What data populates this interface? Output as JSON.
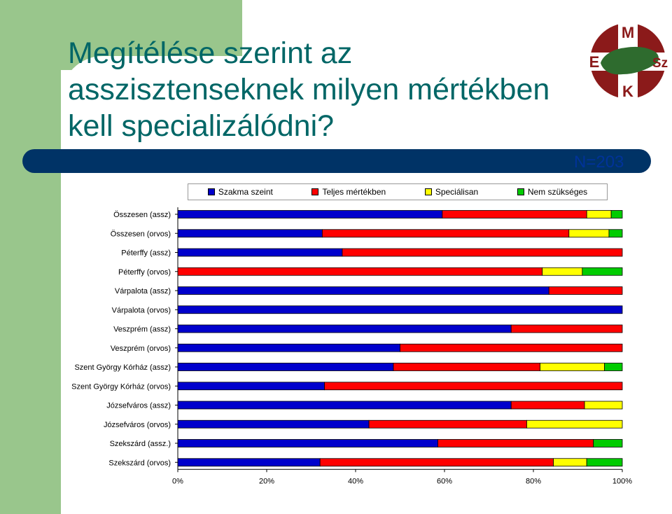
{
  "slide": {
    "title": "Megítélése szerint az asszisztenseknek milyen mértékben kell specializálódni?",
    "n_label": "N=203",
    "logo_letters": [
      "M",
      "E",
      "Sz",
      "K"
    ]
  },
  "colors": {
    "band": "#99c68c",
    "title": "#006666",
    "bar_dark": "#003366",
    "logo": "#8b1a1a",
    "map": "#2e6b2e"
  },
  "chart_data": {
    "type": "bar",
    "orientation": "horizontal",
    "stacked": "percent",
    "categories": [
      "Összesen (assz)",
      "Összesen (orvos)",
      "Péterffy (assz)",
      "Péterffy (orvos)",
      "Várpalota (assz)",
      "Várpalota (orvos)",
      "Veszprém (assz)",
      "Veszprém (orvos)",
      "Szent György Kórház (assz)",
      "Szent György Kórház (orvos)",
      "Józsefváros (assz)",
      "Józsefváros (orvos)",
      "Szekszárd (assz.)",
      "Szekszárd (orvos)"
    ],
    "series": [
      {
        "name": "Szakma szeint",
        "color": "#0000cc",
        "values": [
          59.5,
          32.5,
          37,
          0,
          83.5,
          100,
          75,
          50,
          48.5,
          33,
          75,
          43,
          58.5,
          32
        ]
      },
      {
        "name": "Teljes mértékben",
        "color": "#ff0000",
        "values": [
          32.5,
          55.5,
          63,
          82,
          16.5,
          0,
          25,
          50,
          33,
          67,
          16.5,
          35.5,
          35,
          52.5
        ]
      },
      {
        "name": "Speciálisan",
        "color": "#ffff00",
        "values": [
          5.5,
          9,
          0,
          9,
          0,
          0,
          0,
          0,
          14.5,
          0,
          8.5,
          21.5,
          0,
          7.5
        ]
      },
      {
        "name": "Nem szükséges",
        "color": "#00cc00",
        "values": [
          2.5,
          3,
          0,
          9,
          0,
          0,
          0,
          0,
          4,
          0,
          0,
          0,
          6.5,
          8
        ]
      }
    ],
    "xlim": [
      0,
      100
    ],
    "xticks": [
      "0%",
      "20%",
      "40%",
      "60%",
      "80%",
      "100%"
    ],
    "grid": false,
    "legend_position": "top"
  }
}
